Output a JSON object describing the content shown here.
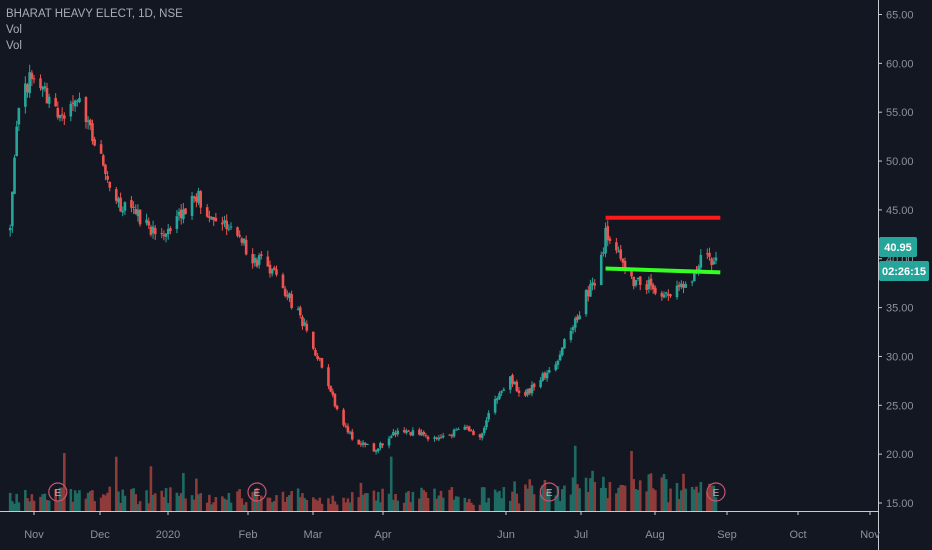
{
  "legend": {
    "symbol": "BHARAT HEAVY ELECT, 1D, NSE",
    "vol1": "Vol",
    "vol2": "Vol"
  },
  "price_badge": "40.95",
  "countdown_badge": "02:26:15",
  "earnings_marker": "E",
  "colors": {
    "background": "#131722",
    "up": "#26a69a",
    "down": "#ef5350",
    "resistance": "#ff1a1a",
    "support": "#33ff22",
    "badge": "#26a69a",
    "earnings": "#c8566e"
  },
  "chart_data": {
    "type": "candlestick",
    "title": "BHARAT HEAVY ELECT, 1D, NSE",
    "y_axis": {
      "side": "right",
      "ticks": [
        "65.00",
        "60.00",
        "55.00",
        "50.00",
        "45.00",
        "40.00",
        "35.00",
        "30.00",
        "25.00",
        "20.00",
        "15.00"
      ],
      "range": [
        14.5,
        66.2
      ]
    },
    "x_axis": {
      "ticks": [
        "Nov",
        "Dec",
        "2020",
        "Feb",
        "Mar",
        "Apr",
        "Jun",
        "Jul",
        "Aug",
        "Sep",
        "Oct",
        "Nov"
      ]
    },
    "price_path": [
      {
        "date": "Oct 21",
        "close": 43.0
      },
      {
        "date": "Oct 25",
        "close": 56.0
      },
      {
        "date": "Oct 30",
        "close": 58.5
      },
      {
        "date": "Nov 06",
        "close": 56.8
      },
      {
        "date": "Nov 13",
        "close": 54.2
      },
      {
        "date": "Nov 20",
        "close": 56.5
      },
      {
        "date": "Nov 27",
        "close": 53.5
      },
      {
        "date": "Dec 04",
        "close": 49.0
      },
      {
        "date": "Dec 11",
        "close": 45.5
      },
      {
        "date": "Dec 18",
        "close": 44.5
      },
      {
        "date": "Dec 25",
        "close": 43.2
      },
      {
        "date": "Jan 01",
        "close": 43.0
      },
      {
        "date": "Jan 08",
        "close": 44.5
      },
      {
        "date": "Jan 15",
        "close": 46.5
      },
      {
        "date": "Jan 20",
        "close": 45.0
      },
      {
        "date": "Jan 27",
        "close": 44.0
      },
      {
        "date": "Feb 03",
        "close": 42.5
      },
      {
        "date": "Feb 10",
        "close": 40.0
      },
      {
        "date": "Feb 17",
        "close": 39.5
      },
      {
        "date": "Feb 24",
        "close": 37.0
      },
      {
        "date": "Mar 02",
        "close": 34.5
      },
      {
        "date": "Mar 09",
        "close": 31.0
      },
      {
        "date": "Mar 16",
        "close": 27.0
      },
      {
        "date": "Mar 23",
        "close": 23.0
      },
      {
        "date": "Mar 30",
        "close": 21.0
      },
      {
        "date": "Apr 06",
        "close": 20.5
      },
      {
        "date": "Apr 13",
        "close": 21.8
      },
      {
        "date": "Apr 20",
        "close": 22.5
      },
      {
        "date": "Apr 27",
        "close": 22.0
      },
      {
        "date": "May 04",
        "close": 21.5
      },
      {
        "date": "May 11",
        "close": 22.0
      },
      {
        "date": "May 18",
        "close": 22.5
      },
      {
        "date": "May 25",
        "close": 22.0
      },
      {
        "date": "Jun 01",
        "close": 25.5
      },
      {
        "date": "Jun 08",
        "close": 27.5
      },
      {
        "date": "Jun 15",
        "close": 26.0
      },
      {
        "date": "Jun 22",
        "close": 28.0
      },
      {
        "date": "Jun 29",
        "close": 29.0
      },
      {
        "date": "Jul 03",
        "close": 31.5
      },
      {
        "date": "Jul 08",
        "close": 33.5
      },
      {
        "date": "Jul 13",
        "close": 36.5
      },
      {
        "date": "Jul 18",
        "close": 38.0
      },
      {
        "date": "Jul 22",
        "close": 42.5
      },
      {
        "date": "Jul 27",
        "close": 41.0
      },
      {
        "date": "Aug 01",
        "close": 38.0
      },
      {
        "date": "Aug 07",
        "close": 37.5
      },
      {
        "date": "Aug 14",
        "close": 37.0
      },
      {
        "date": "Aug 21",
        "close": 36.2
      },
      {
        "date": "Aug 27",
        "close": 37.5
      },
      {
        "date": "Sep 02",
        "close": 38.5
      },
      {
        "date": "Sep 06",
        "close": 41.0
      },
      {
        "date": "Sep 09",
        "close": 39.5
      },
      {
        "date": "Sep 12",
        "close": 40.95
      }
    ],
    "lines": [
      {
        "name": "resistance",
        "value": 44.2,
        "from": "Jul 22",
        "to": "Sep 13",
        "color": "#ff1a1a"
      },
      {
        "name": "support",
        "from_date": "Jul 22",
        "from_value": 39.0,
        "to_date": "Sep 13",
        "to_value": 38.6,
        "color": "#33ff22"
      }
    ],
    "earnings_events": [
      "Nov 12",
      "Feb 12",
      "Jun 26",
      "Sep 11"
    ],
    "last_price": 40.95,
    "grid": false
  }
}
